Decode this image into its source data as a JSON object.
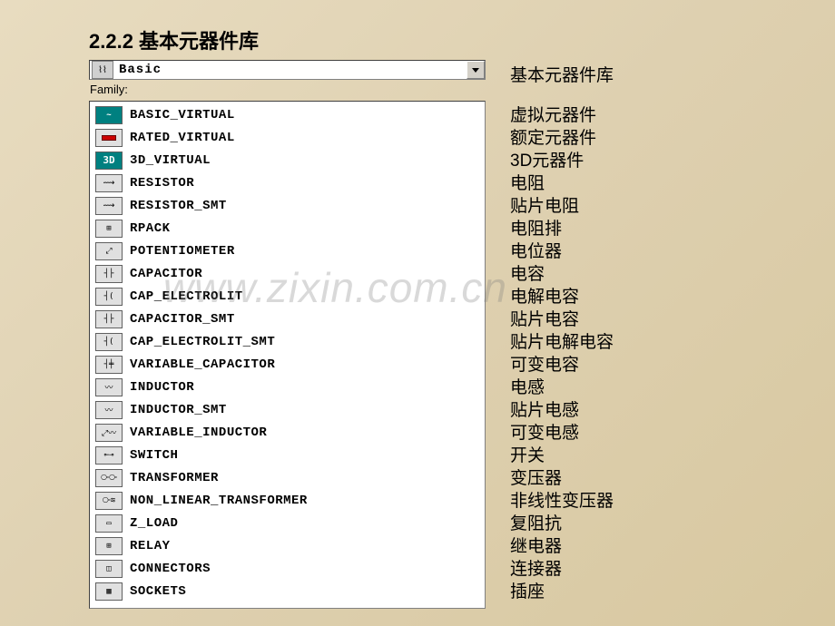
{
  "title": "2.2.2 基本元器件库",
  "dropdown": {
    "selected": "Basic",
    "side_label": "基本元器件库",
    "icon_glyph": "⌇⌇"
  },
  "family_label": "Family:",
  "watermark": "www.zixin.com.cn",
  "items": [
    {
      "id": "basic-virtual",
      "label": "BASIC_VIRTUAL",
      "chinese": "虚拟元器件",
      "icon_class": "teal",
      "icon_text": "~"
    },
    {
      "id": "rated-virtual",
      "label": "RATED_VIRTUAL",
      "chinese": "额定元器件",
      "icon_class": "red",
      "icon_text": ""
    },
    {
      "id": "3d-virtual",
      "label": "3D_VIRTUAL",
      "chinese": "3D元器件",
      "icon_class": "teal-3d",
      "icon_text": "3D"
    },
    {
      "id": "resistor",
      "label": "RESISTOR",
      "chinese": "电阻",
      "icon_class": "",
      "icon_text": "⟿"
    },
    {
      "id": "resistor-smt",
      "label": "RESISTOR_SMT",
      "chinese": "贴片电阻",
      "icon_class": "",
      "icon_text": "⟿"
    },
    {
      "id": "rpack",
      "label": "RPACK",
      "chinese": "电阻排",
      "icon_class": "",
      "icon_text": "⊞"
    },
    {
      "id": "potentiometer",
      "label": "POTENTIOMETER",
      "chinese": "电位器",
      "icon_class": "",
      "icon_text": "⤢"
    },
    {
      "id": "capacitor",
      "label": "CAPACITOR",
      "chinese": "电容",
      "icon_class": "",
      "icon_text": "┤├"
    },
    {
      "id": "cap-electrolit",
      "label": "CAP_ELECTROLIT",
      "chinese": "电解电容",
      "icon_class": "",
      "icon_text": "┤("
    },
    {
      "id": "capacitor-smt",
      "label": "CAPACITOR_SMT",
      "chinese": "贴片电容",
      "icon_class": "",
      "icon_text": "┤├"
    },
    {
      "id": "cap-electrolit-smt",
      "label": "CAP_ELECTROLIT_SMT",
      "chinese": "贴片电解电容",
      "icon_class": "",
      "icon_text": "┤("
    },
    {
      "id": "variable-capacitor",
      "label": "VARIABLE_CAPACITOR",
      "chinese": "可变电容",
      "icon_class": "",
      "icon_text": "┤╪"
    },
    {
      "id": "inductor",
      "label": "INDUCTOR",
      "chinese": "电感",
      "icon_class": "",
      "icon_text": "〰"
    },
    {
      "id": "inductor-smt",
      "label": "INDUCTOR_SMT",
      "chinese": "贴片电感",
      "icon_class": "",
      "icon_text": "〰"
    },
    {
      "id": "variable-inductor",
      "label": "VARIABLE_INDUCTOR",
      "chinese": "可变电感",
      "icon_class": "",
      "icon_text": "⤢〰"
    },
    {
      "id": "switch",
      "label": "SWITCH",
      "chinese": "开关",
      "icon_class": "",
      "icon_text": "⟜⊸"
    },
    {
      "id": "transformer",
      "label": "TRANSFORMER",
      "chinese": "变压器",
      "icon_class": "",
      "icon_text": "⧂⧂"
    },
    {
      "id": "non-linear-transformer",
      "label": "NON_LINEAR_TRANSFORMER",
      "chinese": "非线性变压器",
      "icon_class": "",
      "icon_text": "⧂≋"
    },
    {
      "id": "z-load",
      "label": "Z_LOAD",
      "chinese": "复阻抗",
      "icon_class": "",
      "icon_text": "▭"
    },
    {
      "id": "relay",
      "label": "RELAY",
      "chinese": "继电器",
      "icon_class": "",
      "icon_text": "⊞"
    },
    {
      "id": "connectors",
      "label": "CONNECTORS",
      "chinese": "连接器",
      "icon_class": "",
      "icon_text": "◫"
    },
    {
      "id": "sockets",
      "label": "SOCKETS",
      "chinese": "插座",
      "icon_class": "",
      "icon_text": "▦"
    }
  ],
  "colors": {
    "background_start": "#e8dcc0",
    "background_end": "#d8c8a0",
    "listbox_bg": "#ffffff",
    "border_dark": "#404040",
    "border_gray": "#808080",
    "teal": "#008080"
  }
}
